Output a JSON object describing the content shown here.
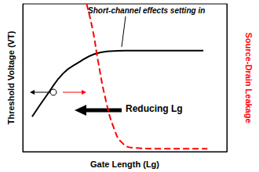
{
  "chart_data": {
    "type": "line",
    "xlabel": "Gate Length (Lg)",
    "ylabel": "Threshold Voltage (VT)",
    "y2label": "Source-Drain Leakage",
    "annotations": [
      "Short-channel effects setting in",
      "Reducing Lg"
    ],
    "xlim": [
      0,
      10
    ],
    "ylim": [
      0,
      10
    ],
    "y2lim": [
      0,
      10
    ],
    "tick_labels": false,
    "grid": false,
    "series": [
      {
        "color": "#000000",
        "line_style": "solid",
        "marker": "none",
        "x": [
          0.46,
          1.22,
          1.98,
          2.75,
          3.5,
          4.27,
          5.04,
          6.56,
          8.85
        ],
        "values": [
          2.37,
          3.9,
          5.3,
          6.05,
          6.6,
          6.8,
          6.84,
          6.84,
          6.84
        ]
      },
      {
        "color": "#ff0000",
        "line_style": "dashed",
        "marker": "none",
        "axis": "y2",
        "x": [
          3.13,
          3.44,
          3.7,
          4.08,
          4.47,
          4.85,
          5.42,
          6.56,
          9.05
        ],
        "values": [
          10,
          8.16,
          6.05,
          3.42,
          1.58,
          0.63,
          0.26,
          0.2,
          0.2
        ]
      }
    ]
  }
}
